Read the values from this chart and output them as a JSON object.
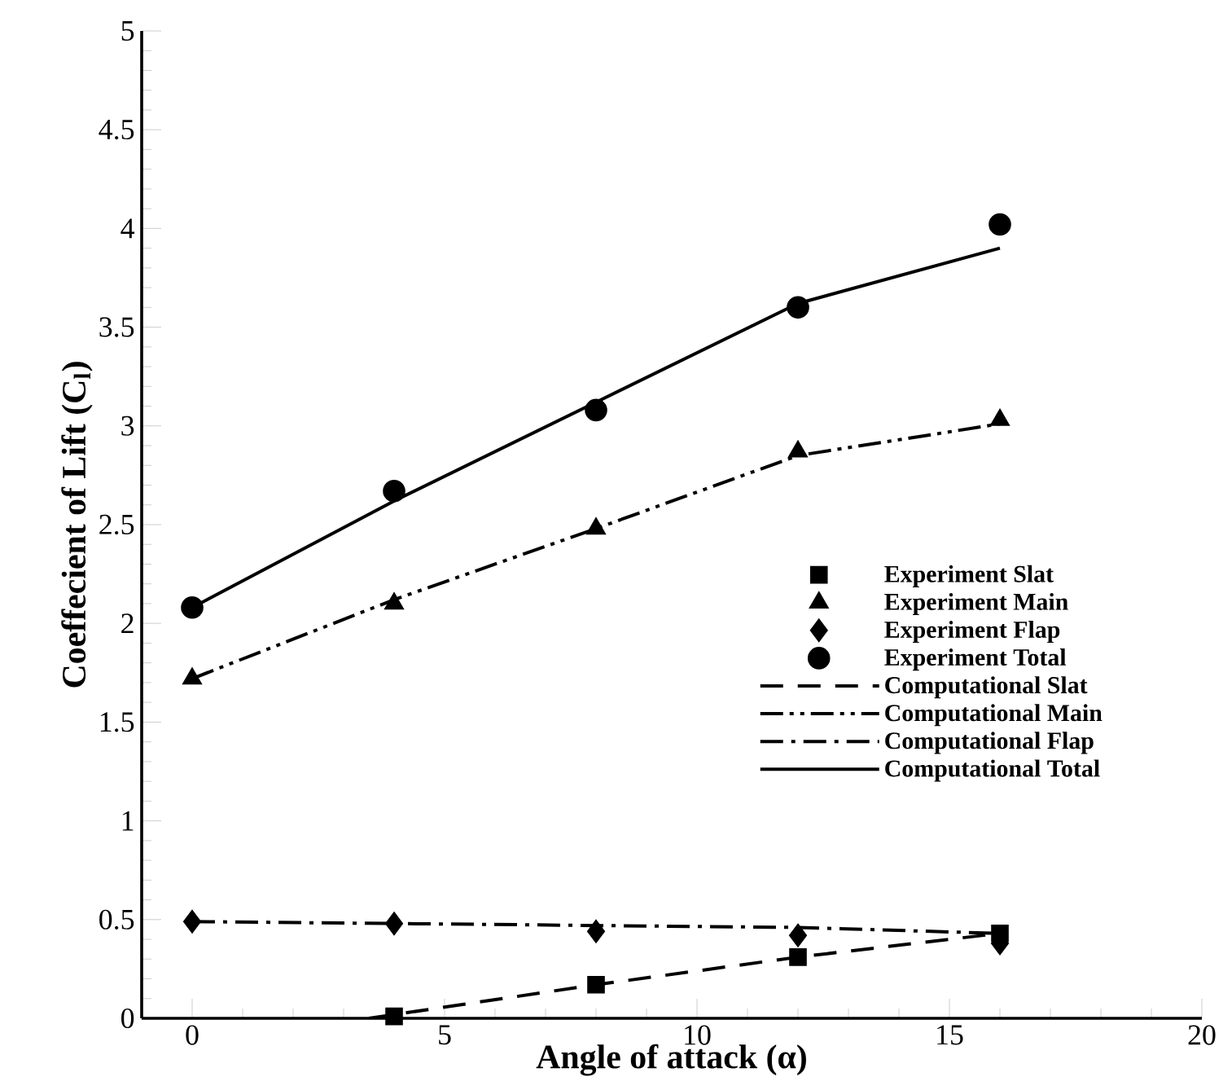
{
  "chart_data": {
    "type": "line",
    "xlabel": "Angle of attack (α)",
    "ylabel": "Coeffecient of Lift (C$_{l}$)",
    "xlim": [
      -1,
      20
    ],
    "ylim": [
      0,
      5
    ],
    "xticks": [
      0,
      5,
      10,
      15,
      20
    ],
    "yticks": [
      0,
      0.5,
      1,
      1.5,
      2,
      2.5,
      3,
      3.5,
      4,
      4.5,
      5
    ],
    "legend": "right",
    "grid": false,
    "series": [
      {
        "name": "Experiment Slat",
        "type": "scatter",
        "marker": "square",
        "color": "#000000",
        "x": [
          4,
          8,
          12,
          16
        ],
        "values": [
          0.01,
          0.17,
          0.31,
          0.43
        ]
      },
      {
        "name": "Experiment Main",
        "type": "scatter",
        "marker": "triangle",
        "color": "#000000",
        "x": [
          0,
          4,
          8,
          12,
          16
        ],
        "values": [
          1.72,
          2.1,
          2.48,
          2.87,
          3.03
        ]
      },
      {
        "name": "Experiment Flap",
        "type": "scatter",
        "marker": "diamond",
        "color": "#000000",
        "x": [
          0,
          4,
          8,
          12,
          16
        ],
        "values": [
          0.49,
          0.48,
          0.44,
          0.42,
          0.38
        ]
      },
      {
        "name": "Experiment Total",
        "type": "scatter",
        "marker": "circle",
        "color": "#000000",
        "x": [
          0,
          4,
          8,
          12,
          16
        ],
        "values": [
          2.08,
          2.67,
          3.08,
          3.6,
          4.02
        ]
      },
      {
        "name": "Computational Slat",
        "line_style": "dashed",
        "color": "#000000",
        "x": [
          3.5,
          8,
          12,
          16
        ],
        "values": [
          0,
          0.17,
          0.31,
          0.43
        ]
      },
      {
        "name": "Computational Main",
        "line_style": "dashdotdot",
        "color": "#000000",
        "x": [
          0,
          4,
          8,
          12,
          16
        ],
        "values": [
          1.72,
          2.12,
          2.48,
          2.85,
          3.01
        ]
      },
      {
        "name": "Computational Flap",
        "line_style": "dashdot",
        "color": "#000000",
        "x": [
          0,
          4,
          8,
          12,
          16
        ],
        "values": [
          0.49,
          0.48,
          0.47,
          0.46,
          0.43
        ]
      },
      {
        "name": "Computational Total",
        "line_style": "solid",
        "color": "#000000",
        "x": [
          0,
          4,
          8,
          12,
          16
        ],
        "values": [
          2.08,
          2.62,
          3.12,
          3.62,
          3.9
        ]
      }
    ]
  }
}
